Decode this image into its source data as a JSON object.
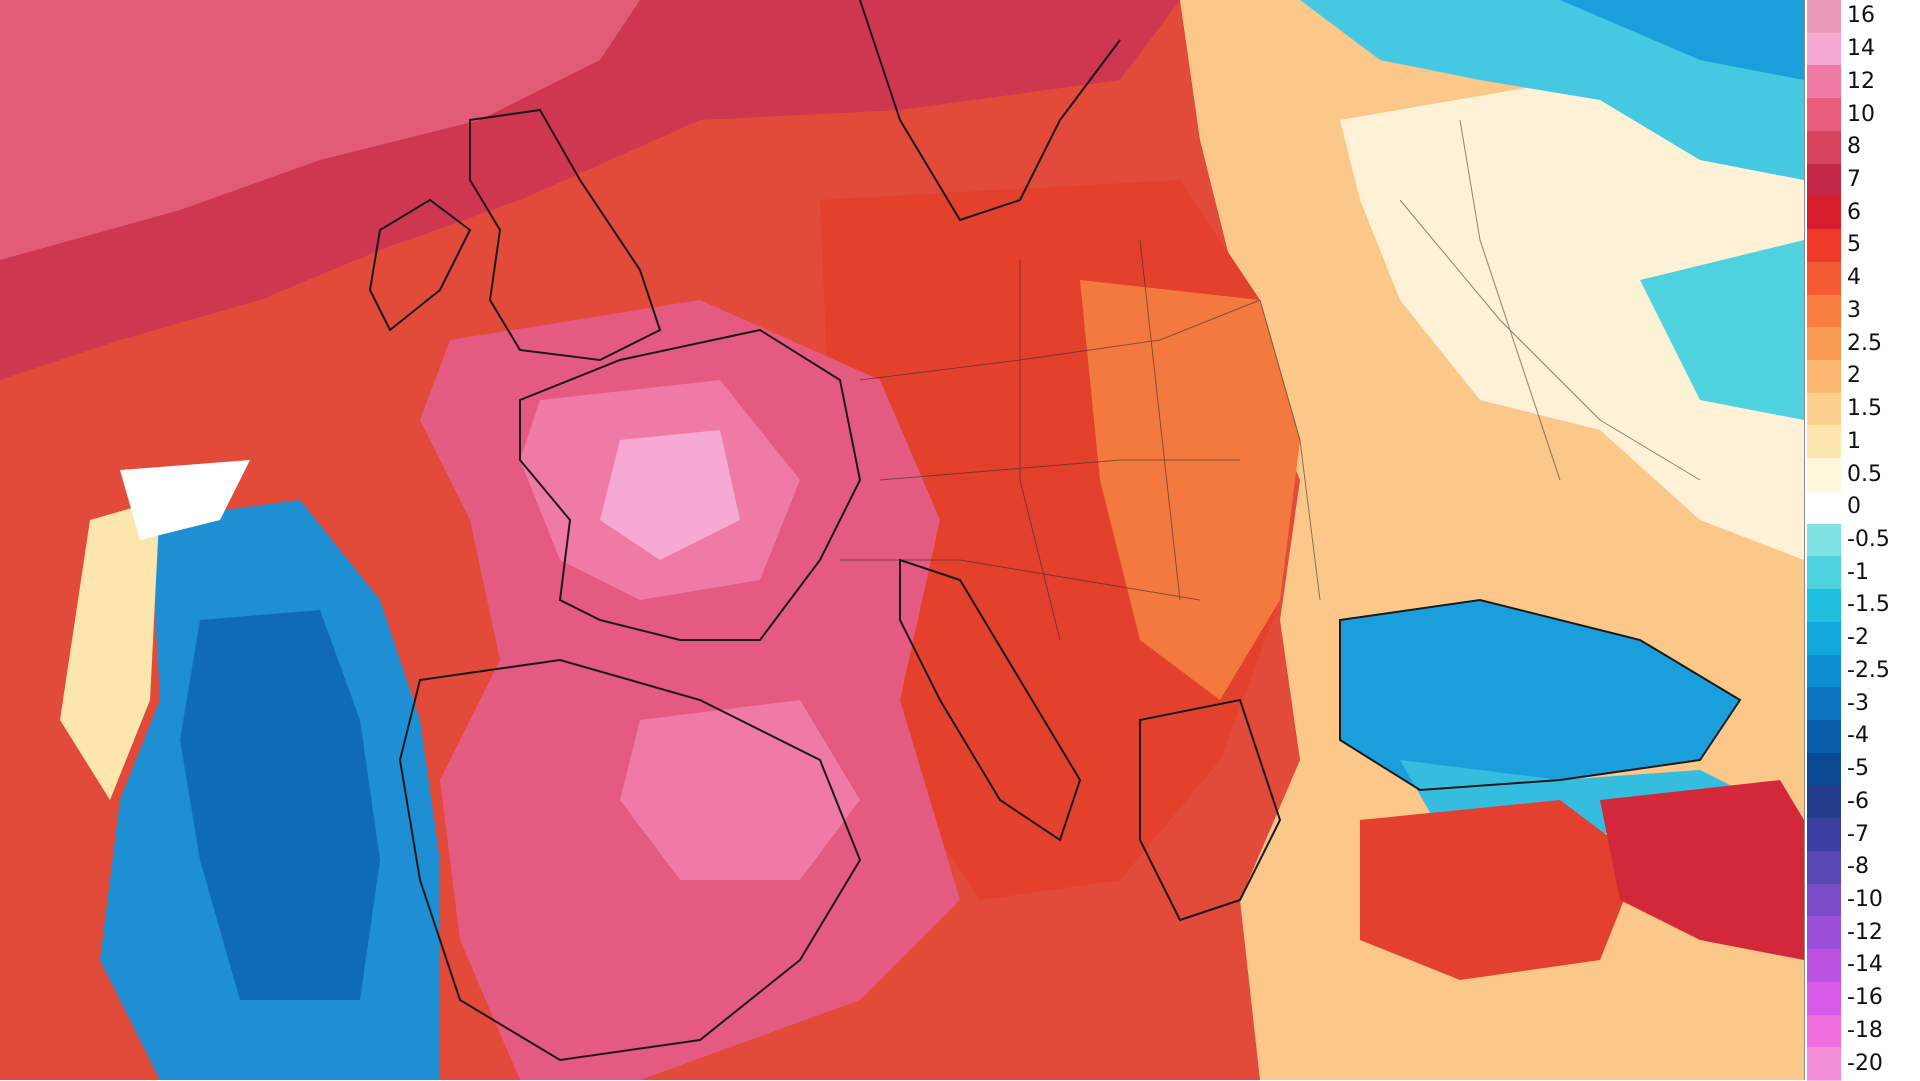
{
  "legend": {
    "items": [
      {
        "label": "16",
        "color": "#e89ab8"
      },
      {
        "label": "14",
        "color": "#f6a9d2"
      },
      {
        "label": "12",
        "color": "#f07aa6"
      },
      {
        "label": "10",
        "color": "#e95c7c"
      },
      {
        "label": "8",
        "color": "#d8435e"
      },
      {
        "label": "7",
        "color": "#c22846"
      },
      {
        "label": "6",
        "color": "#d81e2d"
      },
      {
        "label": "5",
        "color": "#ef3a2a"
      },
      {
        "label": "4",
        "color": "#f45b34"
      },
      {
        "label": "3",
        "color": "#f77d41"
      },
      {
        "label": "2.5",
        "color": "#f99b55"
      },
      {
        "label": "2",
        "color": "#fbb66f"
      },
      {
        "label": "1.5",
        "color": "#fcd08d"
      },
      {
        "label": "1",
        "color": "#fde6ae"
      },
      {
        "label": "0.5",
        "color": "#fff6dc"
      },
      {
        "label": "0",
        "color": "#ffffff"
      },
      {
        "label": "-0.5",
        "color": "#7fe3e3"
      },
      {
        "label": "-1",
        "color": "#4fd2df"
      },
      {
        "label": "-1.5",
        "color": "#22c0e0"
      },
      {
        "label": "-2",
        "color": "#12a8dc"
      },
      {
        "label": "-2.5",
        "color": "#0c8ed0"
      },
      {
        "label": "-3",
        "color": "#0a74c0"
      },
      {
        "label": "-4",
        "color": "#0a5daa"
      },
      {
        "label": "-5",
        "color": "#0a4a94"
      },
      {
        "label": "-6",
        "color": "#233c8c"
      },
      {
        "label": "-7",
        "color": "#3b3f9f"
      },
      {
        "label": "-8",
        "color": "#5848b4"
      },
      {
        "label": "-10",
        "color": "#7a4cc8"
      },
      {
        "label": "-12",
        "color": "#9c4fd8"
      },
      {
        "label": "-14",
        "color": "#bc52e2"
      },
      {
        "label": "-16",
        "color": "#d85ae8"
      },
      {
        "label": "-18",
        "color": "#ee6ee0"
      },
      {
        "label": "-20",
        "color": "#f38fd8"
      }
    ]
  },
  "map": {
    "colors": {
      "sea_warm": "#e04a40",
      "france_pink": "#e86a8e",
      "hot_core": "#f39ac6",
      "central_red": "#d63a2e",
      "east_orange": "#f48a4a",
      "east_pale": "#fde2ad",
      "atlantic_blue": "#1f8fd4",
      "atlantic_deep": "#0f6ab8",
      "north_cyan": "#2fc4e0",
      "border": "#1a1a1a"
    }
  }
}
